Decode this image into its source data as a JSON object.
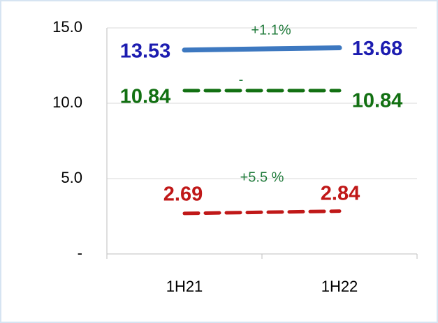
{
  "chart_data": {
    "type": "line",
    "categories": [
      "1H21",
      "1H22"
    ],
    "series": [
      {
        "color": "#3d78c0",
        "label_color": "#1c1cb0",
        "dash": false,
        "values": [
          13.53,
          13.68
        ]
      },
      {
        "color": "#127012",
        "label_color": "#127012",
        "dash": true,
        "values": [
          10.84,
          10.84
        ]
      },
      {
        "color": "#c01818",
        "label_color": "#c01818",
        "dash": true,
        "values": [
          2.69,
          2.84
        ]
      }
    ],
    "annotations": [
      {
        "text": "+1.1%",
        "color": "#1f7a3a"
      },
      {
        "text": "-",
        "color": "#1f7a3a"
      },
      {
        "text": "+5.5 %",
        "color": "#1f7a3a"
      }
    ],
    "ylim": [
      0,
      15
    ],
    "yticks": [
      {
        "value": 0,
        "label": "-"
      },
      {
        "value": 5,
        "label": "5.0"
      },
      {
        "value": 10,
        "label": "10.0"
      },
      {
        "value": 15,
        "label": "15.0"
      }
    ],
    "grid": true
  }
}
